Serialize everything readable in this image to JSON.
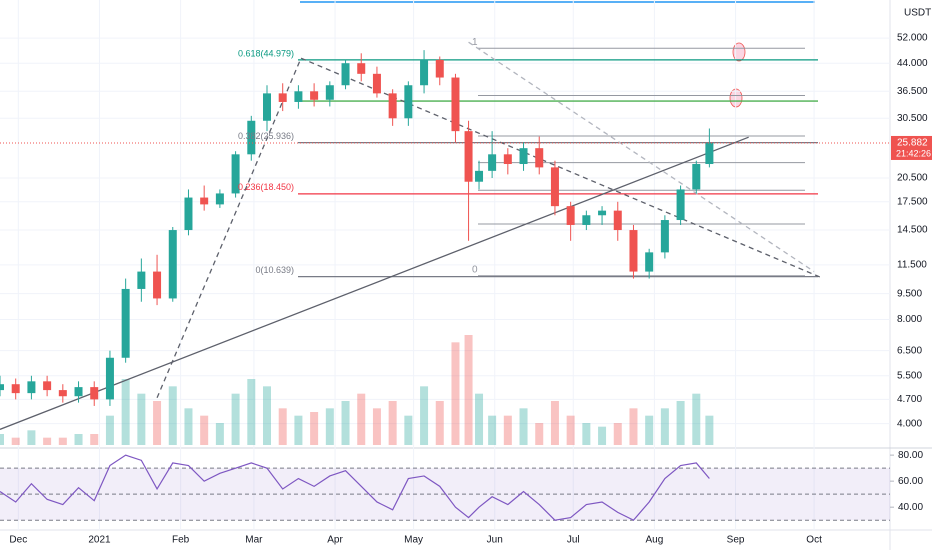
{
  "chart_data": {
    "type": "candlestick",
    "quote_unit": "USDT",
    "x": [
      -7,
      -1,
      5,
      11,
      17,
      23,
      29,
      35,
      41,
      47,
      53,
      59,
      65,
      71,
      77,
      83,
      89,
      95,
      101,
      107,
      113,
      119,
      125,
      131,
      137,
      143,
      149,
      155,
      161,
      167,
      172,
      176,
      181,
      187,
      193,
      199,
      205,
      211,
      217,
      223,
      229,
      235,
      241,
      247,
      253,
      259,
      264
    ],
    "open": [
      5.0,
      5.2,
      4.9,
      5.3,
      5.0,
      4.8,
      5.1,
      4.7,
      6.2,
      9.8,
      11.0,
      9.2,
      14.5,
      18.0,
      17.2,
      18.5,
      24.0,
      30.0,
      36.0,
      34.0,
      36.5,
      34.5,
      38.0,
      44.0,
      41.0,
      36.0,
      30.5,
      38.0,
      45.0,
      40.0,
      28.0,
      20.0,
      21.5,
      24.0,
      22.5,
      25.0,
      22.0,
      17.0,
      15.0,
      16.0,
      16.5,
      14.5,
      11.0,
      12.5,
      15.5,
      19.0,
      22.5
    ],
    "high": [
      5.5,
      5.4,
      5.5,
      5.5,
      5.2,
      5.3,
      5.3,
      6.5,
      10.5,
      12.0,
      12.3,
      14.8,
      19.0,
      19.5,
      19.0,
      24.5,
      31.0,
      38.0,
      38.5,
      38.0,
      38.5,
      39.0,
      45.0,
      47.0,
      43.0,
      37.0,
      39.0,
      48.0,
      46.0,
      41.0,
      30.0,
      23.0,
      28.0,
      25.0,
      26.0,
      27.0,
      23.0,
      17.5,
      16.5,
      17.0,
      17.5,
      15.0,
      12.8,
      16.0,
      19.5,
      23.0,
      28.5
    ],
    "low": [
      4.8,
      4.7,
      4.7,
      4.8,
      4.6,
      4.6,
      4.5,
      4.5,
      6.0,
      9.0,
      8.8,
      9.0,
      14.0,
      16.5,
      16.8,
      18.0,
      23.0,
      28.0,
      32.0,
      32.5,
      33.0,
      33.0,
      37.0,
      39.0,
      35.0,
      29.0,
      29.0,
      36.0,
      38.0,
      26.0,
      13.5,
      19.0,
      20.5,
      21.0,
      21.5,
      21.0,
      16.0,
      13.5,
      14.5,
      15.0,
      13.5,
      10.5,
      10.5,
      12.0,
      15.0,
      18.5,
      22.0
    ],
    "close": [
      5.2,
      4.9,
      5.3,
      5.0,
      4.8,
      5.1,
      4.7,
      6.2,
      9.8,
      11.0,
      9.2,
      14.5,
      18.0,
      17.2,
      18.5,
      24.0,
      30.0,
      36.0,
      34.0,
      36.5,
      34.5,
      38.0,
      44.0,
      41.0,
      36.0,
      30.5,
      38.0,
      45.0,
      40.0,
      28.0,
      20.0,
      21.5,
      24.0,
      22.5,
      25.0,
      22.0,
      17.0,
      15.0,
      16.0,
      16.5,
      14.5,
      11.0,
      12.5,
      15.5,
      19.0,
      22.5,
      25.882
    ],
    "volume": [
      3,
      2,
      4,
      2,
      2,
      3,
      3,
      8,
      18,
      14,
      12,
      16,
      10,
      8,
      6,
      14,
      18,
      16,
      10,
      8,
      9,
      10,
      12,
      14,
      10,
      12,
      8,
      16,
      12,
      28,
      30,
      14,
      8,
      8,
      10,
      6,
      12,
      8,
      6,
      5,
      6,
      10,
      8,
      10,
      12,
      14,
      8
    ],
    "up_color": "#26a69a",
    "down_color": "#ef5350",
    "log_scale": true,
    "xlim": [
      -7,
      333
    ],
    "xticks": [
      {
        "value": 0,
        "label": "Dec"
      },
      {
        "value": 31,
        "label": "2021"
      },
      {
        "value": 62,
        "label": "Feb"
      },
      {
        "value": 90,
        "label": "Mar"
      },
      {
        "value": 121,
        "label": "Apr"
      },
      {
        "value": 151,
        "label": "May"
      },
      {
        "value": 182,
        "label": "Jun"
      },
      {
        "value": 212,
        "label": "Jul"
      },
      {
        "value": 243,
        "label": "Aug"
      },
      {
        "value": 274,
        "label": "Sep"
      },
      {
        "value": 304,
        "label": "Oct"
      }
    ],
    "ylim": [
      3.47,
      67
    ],
    "yticks": [
      {
        "value": 52,
        "label": "52.000"
      },
      {
        "value": 44,
        "label": "44.000"
      },
      {
        "value": 36.5,
        "label": "36.500"
      },
      {
        "value": 30.5,
        "label": "30.500"
      },
      {
        "value": 20.5,
        "label": "20.500"
      },
      {
        "value": 17.5,
        "label": "17.500"
      },
      {
        "value": 14.5,
        "label": "14.500"
      },
      {
        "value": 11.5,
        "label": "11.500"
      },
      {
        "value": 9.5,
        "label": "9.500"
      },
      {
        "value": 8,
        "label": "8.000"
      },
      {
        "value": 6.5,
        "label": "6.500"
      },
      {
        "value": 5.5,
        "label": "5.500"
      },
      {
        "value": 4.7,
        "label": "4.700"
      },
      {
        "value": 4,
        "label": "4.000"
      }
    ],
    "last_price": 25.882,
    "countdown": "21:42:26",
    "fib_levels": [
      {
        "label": "0.618(44.979)",
        "value": 44.979,
        "color": "#089981"
      },
      {
        "value": 34.2,
        "color": "#4caf50"
      },
      {
        "label": "0.382(25.936)",
        "value": 25.936,
        "color": "#787b86"
      },
      {
        "label": "0.236(18.450)",
        "value": 18.45,
        "color": "#f23645"
      },
      {
        "label": "0(10.639)",
        "value": 10.639,
        "color": "#787b86"
      }
    ],
    "fib_levels_2": [
      {
        "ratio": 1,
        "value": 48.6
      },
      {
        "value": 35.5
      },
      {
        "value": 27.1
      },
      {
        "value": 22.7
      },
      {
        "value": 18.9
      },
      {
        "value": 15.1
      },
      {
        "ratio": 0,
        "value": 10.7
      }
    ],
    "fib_levels_2_color": "#9598a1",
    "trendlines": [
      {
        "points": [
          [
            -7,
            3.85
          ],
          [
            279,
            26.9
          ]
        ],
        "dashed": false,
        "color": "#5d606b"
      },
      {
        "points": [
          [
            53,
            4.75
          ],
          [
            108,
            45.5
          ]
        ],
        "dashed": true,
        "color": "#5d606b"
      },
      {
        "points": [
          [
            108,
            45.5
          ],
          [
            307,
            10.55
          ]
        ],
        "dashed": true,
        "color": "#5d606b"
      },
      {
        "points": [
          [
            172,
            50.6
          ],
          [
            304,
            11.0
          ]
        ],
        "dashed": true,
        "color": "#b2b5be"
      }
    ],
    "rsi": {
      "values": [
        52,
        44,
        58,
        46,
        42,
        55,
        45,
        72,
        80,
        76,
        54,
        74,
        72,
        60,
        66,
        70,
        74,
        70,
        54,
        62,
        56,
        64,
        68,
        56,
        44,
        38,
        62,
        64,
        56,
        40,
        32,
        40,
        48,
        42,
        52,
        42,
        30,
        32,
        42,
        44,
        36,
        30,
        44,
        62,
        72,
        74,
        62
      ],
      "color": "#7e57c2",
      "ylim": [
        24,
        82.4
      ],
      "yticks": [
        {
          "value": 80,
          "label": "80.00"
        },
        {
          "value": 60,
          "label": "60.00"
        },
        {
          "value": 40,
          "label": "40.00"
        }
      ],
      "levels": [
        30,
        50,
        70
      ]
    }
  }
}
